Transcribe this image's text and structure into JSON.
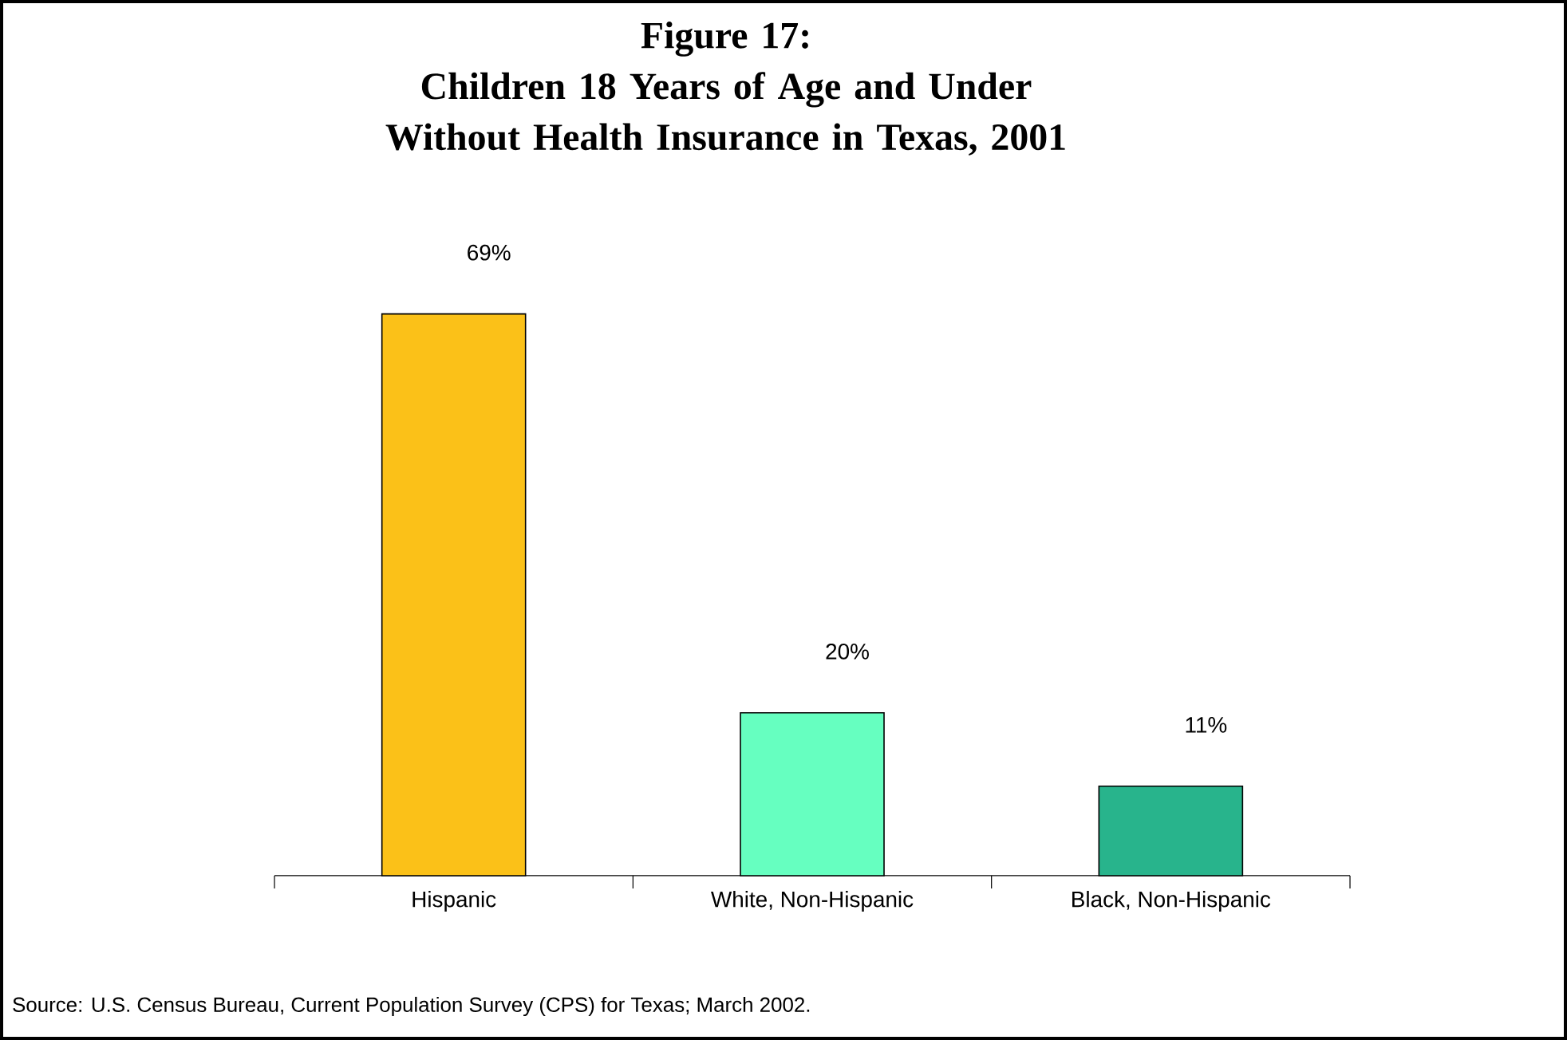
{
  "chart_data": {
    "type": "bar",
    "title": "Figure 17:\nChildren 18 Years of Age and Under\nWithout Health Insurance in Texas, 2001",
    "categories": [
      "Hispanic",
      "White, Non-Hispanic",
      "Black, Non-Hispanic"
    ],
    "values": [
      69,
      20,
      11
    ],
    "value_labels": [
      "69%",
      "20%",
      "11%"
    ],
    "colors": [
      "#fbc118",
      "#66ffc0",
      "#28b48c"
    ],
    "annotations": [
      "Source:  U.S. Census Bureau, Current Population Survey (CPS) for Texas; March 2002."
    ]
  }
}
